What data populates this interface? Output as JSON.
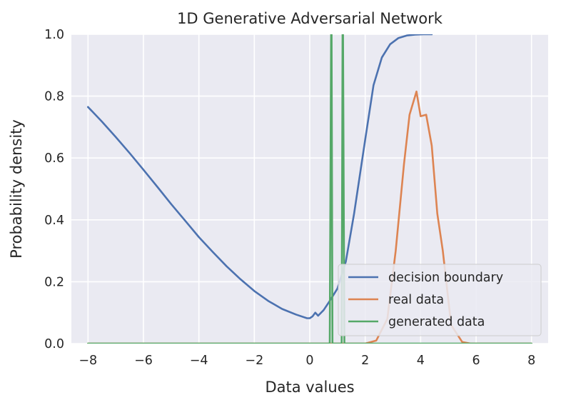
{
  "chart_data": {
    "type": "line",
    "title": "1D Generative Adversarial Network",
    "xlabel": "Data values",
    "ylabel": "Probability density",
    "xlim": [
      -8.6,
      8.6
    ],
    "ylim": [
      0,
      1.0
    ],
    "xticks": [
      -8,
      -6,
      -4,
      -2,
      0,
      2,
      4,
      6,
      8
    ],
    "xtick_labels": [
      "−8",
      "−6",
      "−4",
      "−2",
      "0",
      "2",
      "4",
      "6",
      "8"
    ],
    "yticks": [
      0.0,
      0.2,
      0.4,
      0.6,
      0.8,
      1.0
    ],
    "ytick_labels": [
      "0.0",
      "0.2",
      "0.4",
      "0.6",
      "0.8",
      "1.0"
    ],
    "grid": true,
    "legend_position": "lower-right",
    "series": [
      {
        "name": "decision boundary",
        "color": "#4c72b0",
        "x": [
          -8,
          -7.5,
          -7,
          -6.5,
          -6,
          -5.5,
          -5,
          -4.5,
          -4,
          -3.5,
          -3,
          -2.5,
          -2,
          -1.5,
          -1,
          -0.5,
          -0.1,
          0,
          0.1,
          0.2,
          0.3,
          0.5,
          0.7,
          1.0,
          1.3,
          1.6,
          2.0,
          2.3,
          2.6,
          2.9,
          3.2,
          3.5,
          3.8,
          4.1,
          4.4
        ],
        "y": [
          0.765,
          0.718,
          0.668,
          0.616,
          0.562,
          0.507,
          0.451,
          0.398,
          0.344,
          0.296,
          0.25,
          0.208,
          0.17,
          0.138,
          0.112,
          0.094,
          0.082,
          0.082,
          0.088,
          0.1,
          0.09,
          0.108,
          0.135,
          0.178,
          0.265,
          0.42,
          0.66,
          0.835,
          0.925,
          0.968,
          0.988,
          0.996,
          0.999,
          1.0,
          1.0
        ]
      },
      {
        "name": "real data",
        "color": "#dd8452",
        "x": [
          -8,
          2.0,
          2.4,
          2.8,
          3.1,
          3.4,
          3.6,
          3.85,
          4.0,
          4.2,
          4.4,
          4.6,
          4.8,
          5.1,
          5.5,
          5.8,
          8
        ],
        "y": [
          0,
          0,
          0.01,
          0.08,
          0.3,
          0.58,
          0.74,
          0.815,
          0.735,
          0.74,
          0.64,
          0.42,
          0.3,
          0.06,
          0.005,
          0,
          0
        ]
      },
      {
        "name": "generated data",
        "color": "#55a868",
        "x": [
          -8,
          0.72,
          0.78,
          0.82,
          1.15,
          1.19,
          1.25,
          8
        ],
        "y": [
          0,
          0,
          1.2,
          0,
          0,
          1.2,
          0,
          0
        ]
      }
    ]
  }
}
